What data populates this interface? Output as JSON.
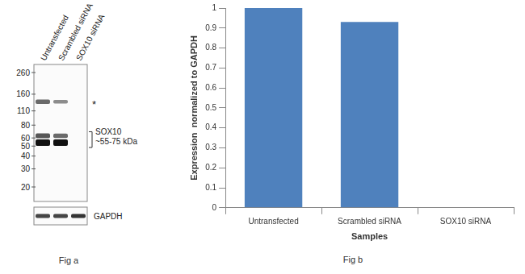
{
  "blot": {
    "caption": "Fig a",
    "lanes": [
      "Untransfected",
      "Scrambled siRNA",
      "SOX10 siRNA"
    ],
    "markers": [
      260,
      160,
      110,
      80,
      60,
      50,
      40,
      30,
      20
    ],
    "star": {
      "text": "*",
      "kda": 135
    },
    "sox10_label": [
      "SOX10",
      "~55-75 kDa"
    ],
    "bands": [
      {
        "lane": "Untransfected",
        "kda": 135,
        "strength": 0.5
      },
      {
        "lane": "Untransfected",
        "kda": 63,
        "strength": 0.6
      },
      {
        "lane": "Untransfected",
        "kda": 54,
        "strength": 1
      },
      {
        "lane": "Scrambled siRNA",
        "kda": 135,
        "strength": 0.3
      },
      {
        "lane": "Scrambled siRNA",
        "kda": 63,
        "strength": 0.5
      },
      {
        "lane": "Scrambled siRNA",
        "kda": 54,
        "strength": 1
      }
    ],
    "loading_control": "GAPDH",
    "loading_bands": [
      {
        "lane": "Untransfected",
        "strength": 0.7
      },
      {
        "lane": "Scrambled siRNA",
        "strength": 0.7
      },
      {
        "lane": "SOX10 siRNA",
        "strength": 0.8
      }
    ]
  },
  "chart_data": {
    "type": "bar",
    "caption": "Fig b",
    "categories": [
      "Untransfected",
      "Scrambled siRNA",
      "SOX10 siRNA"
    ],
    "values": [
      1,
      0.93,
      0
    ],
    "color": "#4f81bd",
    "x_label": "Samples",
    "y_label": "Expression  normalized to GAPDH",
    "ylim": [
      0,
      1
    ],
    "yticks": [
      0,
      0.1,
      0.2,
      0.3,
      0.4,
      0.5,
      0.6,
      0.7,
      0.8,
      0.9,
      1
    ],
    "grid": false
  }
}
